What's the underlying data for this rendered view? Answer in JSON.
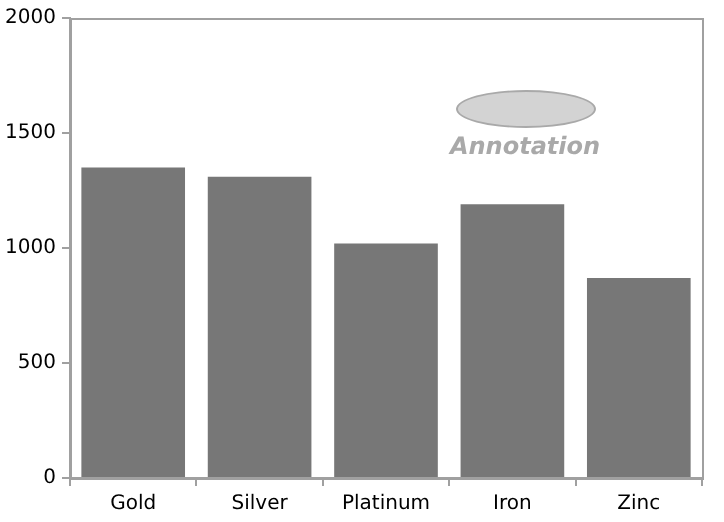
{
  "chart_data": {
    "type": "bar",
    "categories": [
      "Gold",
      "Silver",
      "Platinum",
      "Iron",
      "Zinc"
    ],
    "values": [
      1350,
      1310,
      1020,
      1190,
      870
    ],
    "color": "#777777",
    "ylim": [
      0,
      2000
    ],
    "yticks": [
      0,
      500,
      1000,
      1500,
      2000
    ],
    "grid": false,
    "legend": false,
    "annotations": [
      "Annotation"
    ]
  }
}
